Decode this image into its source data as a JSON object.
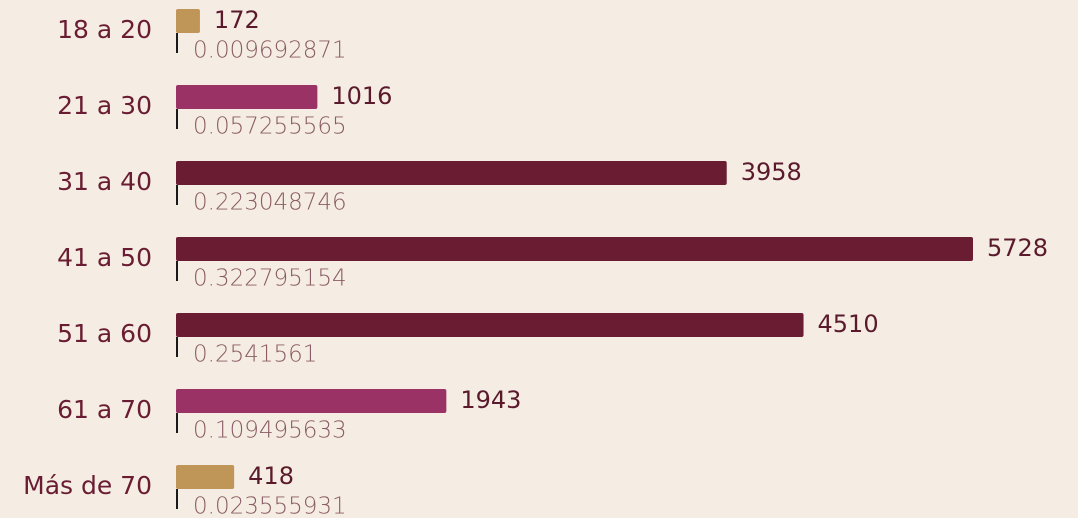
{
  "chart_data": {
    "type": "bar",
    "categories": [
      "18 a 20",
      "21 a 30",
      "31 a 40",
      "41 a 50",
      "51 a 60",
      "61 a 70",
      "Más de 70"
    ],
    "values": [
      172,
      1016,
      3958,
      5728,
      4510,
      1943,
      418
    ],
    "shares": [
      "0.009692871",
      "0.057255565",
      "0.223048746",
      "0.322795154",
      "0.2541561",
      "0.109495633",
      "0.023555931"
    ],
    "colors": [
      "#bf9558",
      "#9b3266",
      "#691c32",
      "#691c32",
      "#691c32",
      "#9b3266",
      "#bf9558"
    ],
    "xlim": [
      0,
      5728
    ]
  }
}
